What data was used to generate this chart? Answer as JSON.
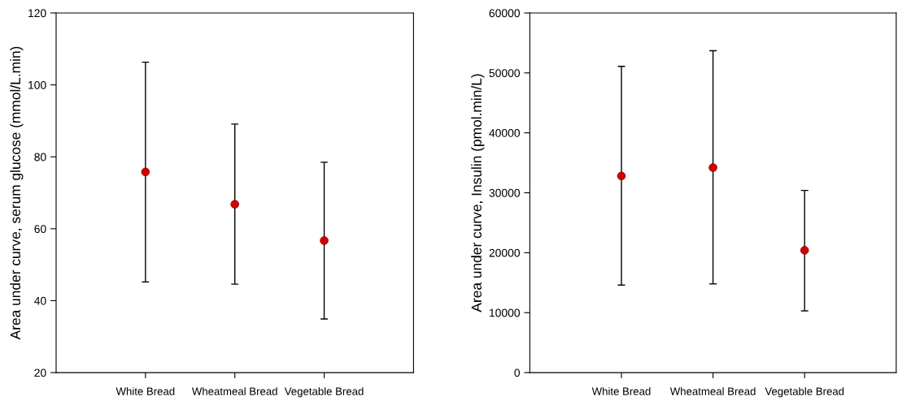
{
  "chart_data": [
    {
      "type": "scatter",
      "ylabel": "Area under curve, serum glucose (mmol/L.min)",
      "categories": [
        "White Bread",
        "Wheatmeal Bread",
        "Vegetable Bread"
      ],
      "ylim": [
        20,
        120
      ],
      "yticks": [
        20,
        40,
        60,
        80,
        100,
        120
      ],
      "marker": "circle",
      "series": [
        {
          "color": "#d40000",
          "values": [
            75.8,
            66.8,
            56.7
          ],
          "errors": [
            [
              45.2,
              106.3
            ],
            [
              44.6,
              89.1
            ],
            [
              34.9,
              78.5
            ]
          ]
        }
      ]
    },
    {
      "type": "scatter",
      "ylabel": "Area under curve, Insulin (pmol.min/L)",
      "categories": [
        "White Bread",
        "Wheatmeal Bread",
        "Vegetable Bread"
      ],
      "ylim": [
        0,
        60000
      ],
      "yticks": [
        0,
        10000,
        20000,
        30000,
        40000,
        50000,
        60000
      ],
      "marker": "circle",
      "series": [
        {
          "color": "#d40000",
          "values": [
            32800,
            34200,
            20400
          ],
          "errors": [
            [
              14600,
              51100
            ],
            [
              14800,
              53700
            ],
            [
              10300,
              30400
            ]
          ]
        }
      ]
    }
  ]
}
